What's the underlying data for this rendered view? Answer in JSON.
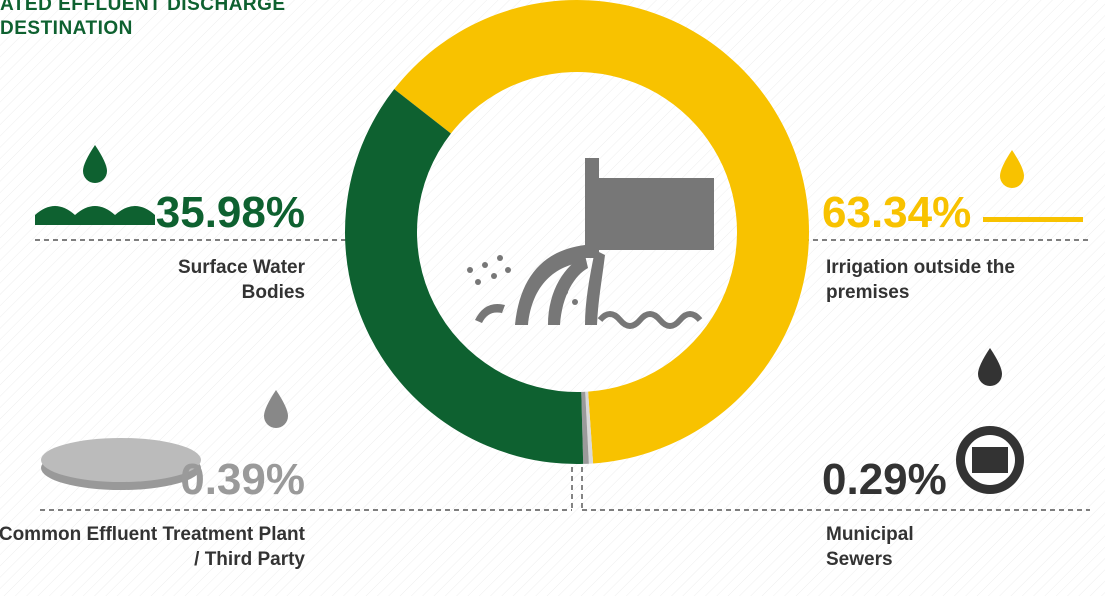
{
  "chart_data": {
    "type": "pie",
    "title_lines": [
      "ATED EFFLUENT DISCHARGE",
      "DESTINATION"
    ],
    "categories": [
      "Irrigation outside the premises",
      "Municipal Sewers",
      "Common Effluent Treatment Plant / Third Party",
      "Surface Water Bodies"
    ],
    "values": [
      63.34,
      0.29,
      0.39,
      35.98
    ],
    "value_labels": [
      "63.34%",
      "0.29%",
      "0.39%",
      "35.98%"
    ],
    "colors": [
      "#f8c200",
      "#d9d9d9",
      "#9a9a9a",
      "#0e6130"
    ]
  }
}
